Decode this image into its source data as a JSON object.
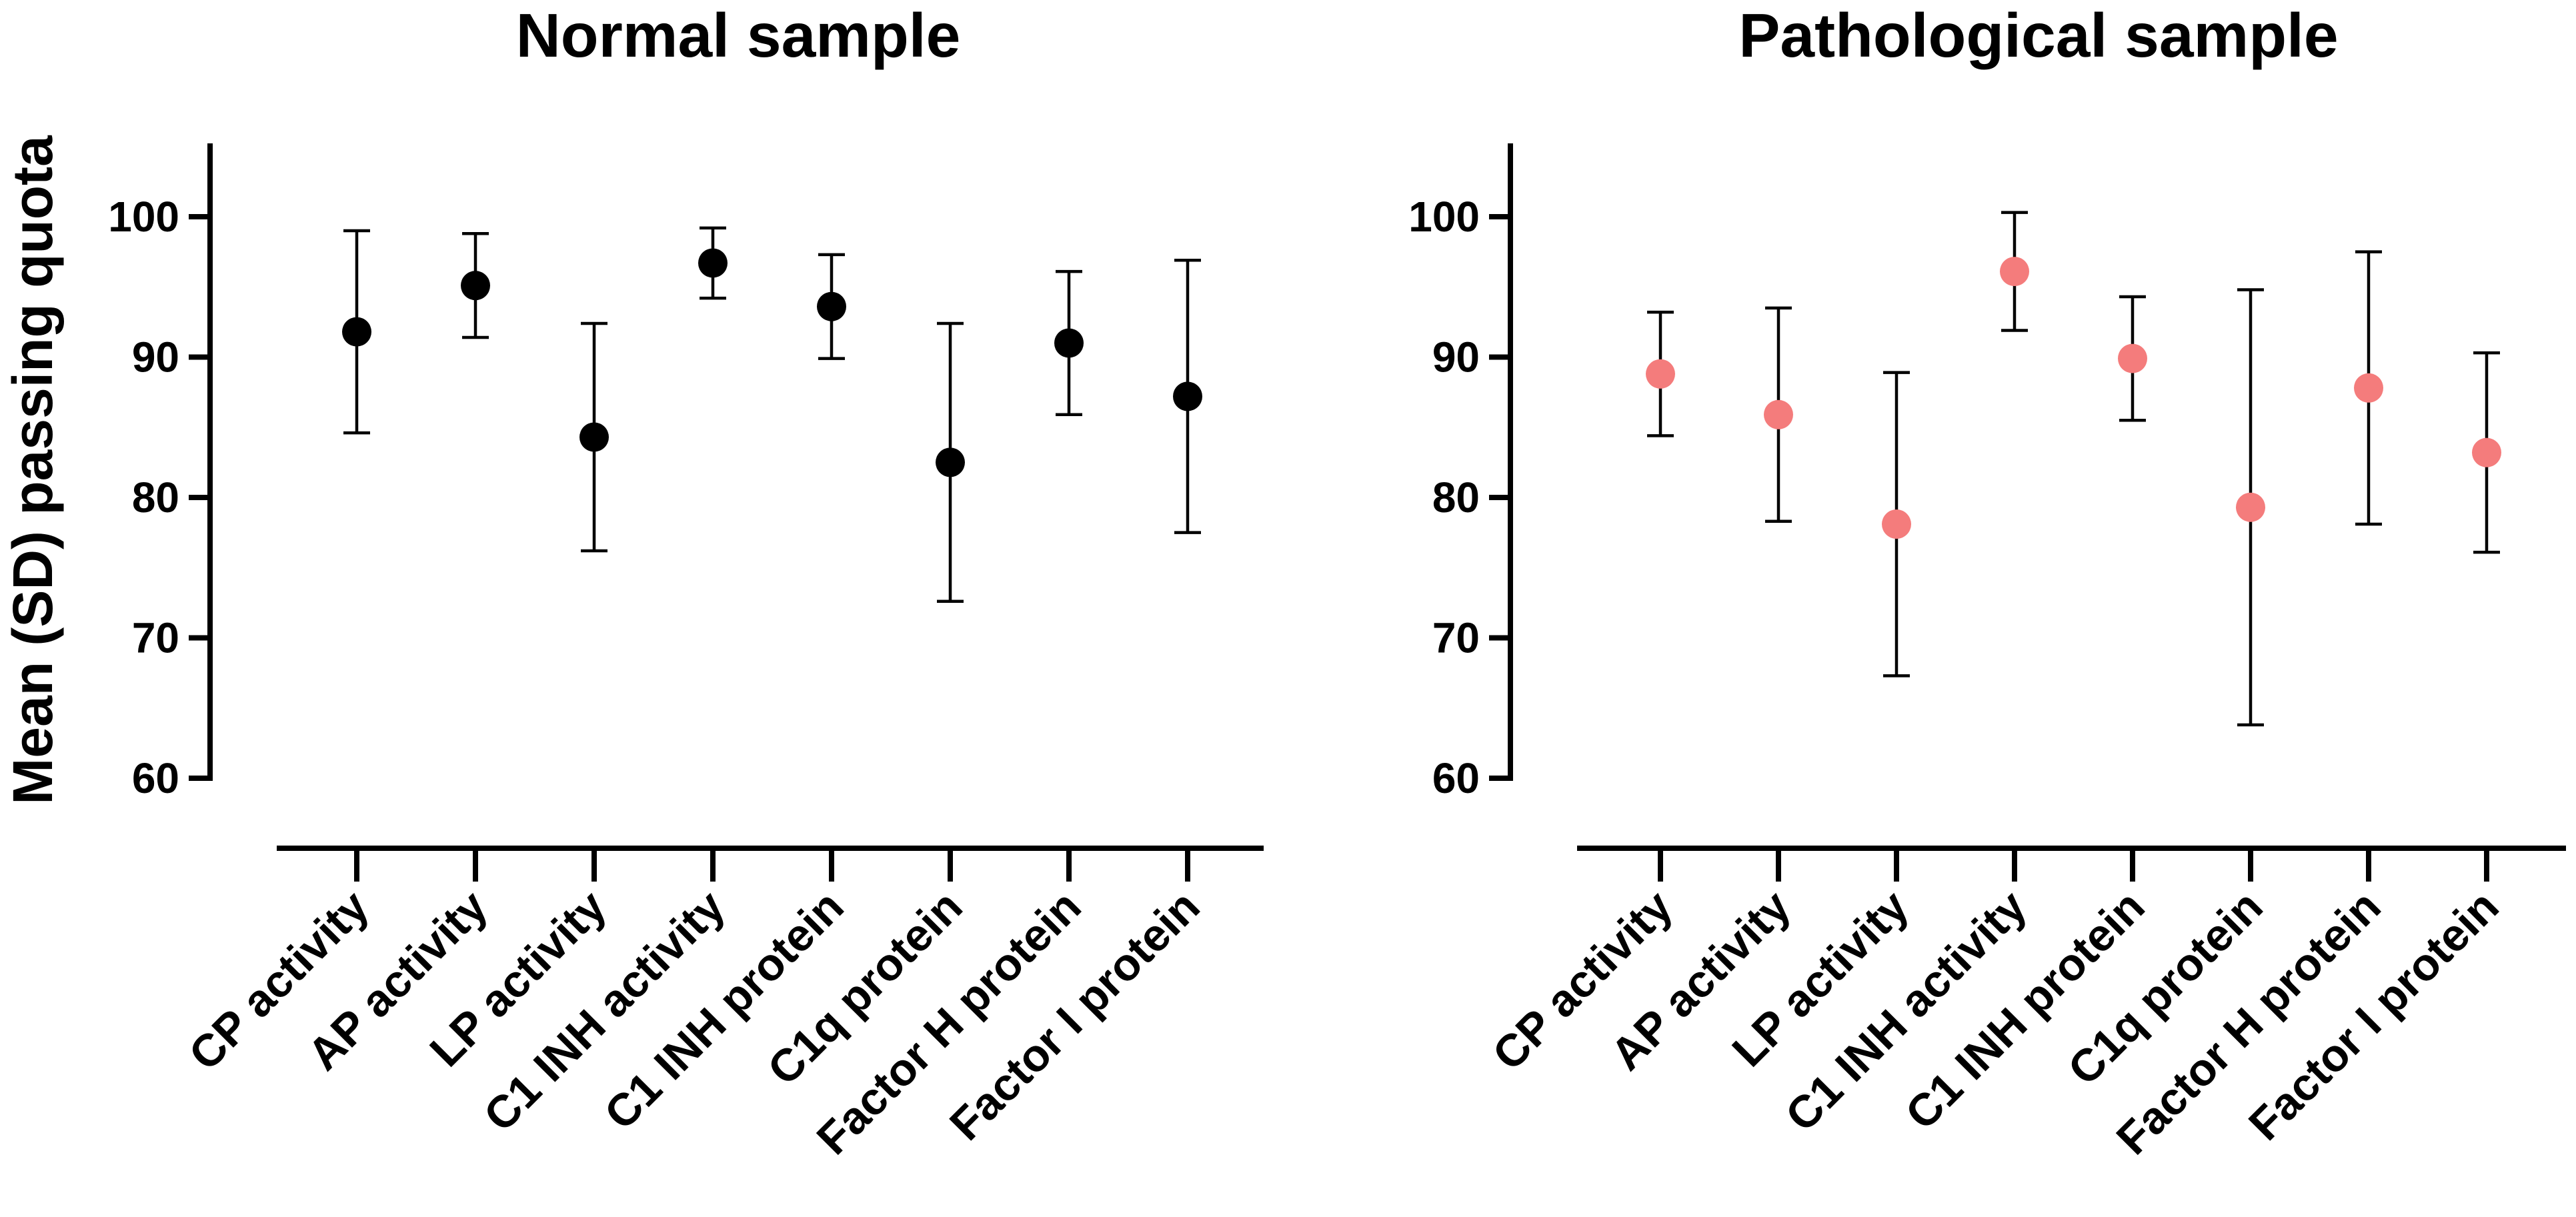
{
  "y_axis_title": "Mean (SD) passing quota",
  "chart_data": [
    {
      "type": "scatter",
      "title": "Normal sample",
      "xlabel": "",
      "ylabel": "Mean (SD) passing quota",
      "ylim": [
        55,
        105
      ],
      "yticks": [
        60,
        70,
        80,
        90,
        100
      ],
      "point_color": "#000000",
      "categories": [
        "CP activity",
        "AP activity",
        "LP activity",
        "C1 INH activity",
        "C1 INH protein",
        "C1q protein",
        "Factor H protein",
        "Factor I protein"
      ],
      "means": [
        91.8,
        95.1,
        84.3,
        96.7,
        93.6,
        82.5,
        91.0,
        87.2
      ],
      "sd": [
        7.2,
        3.7,
        8.1,
        2.5,
        3.7,
        9.9,
        5.1,
        9.7
      ]
    },
    {
      "type": "scatter",
      "title": "Pathological sample",
      "xlabel": "",
      "ylabel": "Mean (SD) passing quota",
      "ylim": [
        55,
        105
      ],
      "yticks": [
        60,
        70,
        80,
        90,
        100
      ],
      "point_color": "#f47c7c",
      "categories": [
        "CP activity",
        "AP activity",
        "LP activity",
        "C1 INH activity",
        "C1 INH protein",
        "C1q protein",
        "Factor H protein",
        "Factor I protein"
      ],
      "means": [
        88.8,
        85.9,
        78.1,
        96.1,
        89.9,
        79.3,
        87.8,
        83.2
      ],
      "sd": [
        4.4,
        7.6,
        10.8,
        4.2,
        4.4,
        15.5,
        9.7,
        7.1
      ]
    }
  ]
}
